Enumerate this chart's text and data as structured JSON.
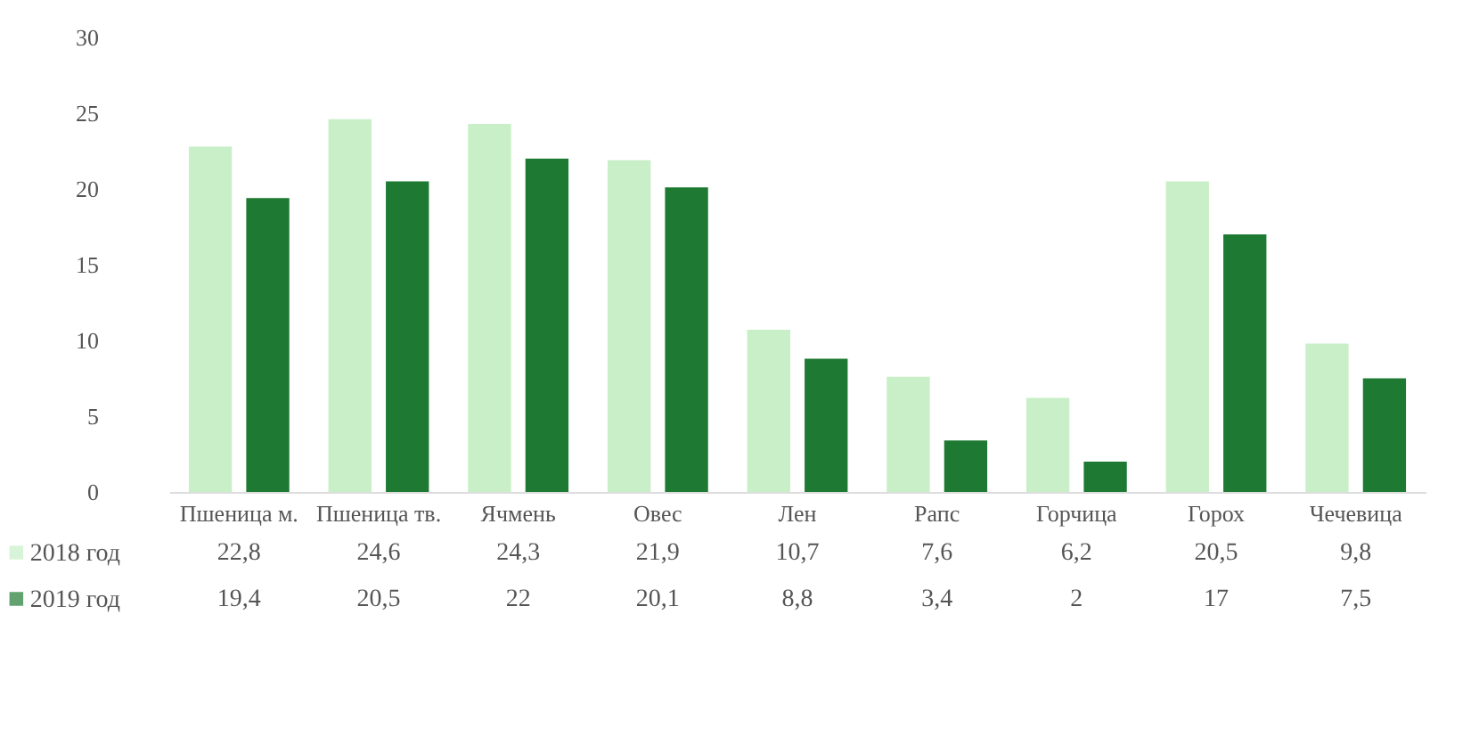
{
  "chart_data": {
    "type": "bar",
    "categories": [
      "Пшеница м.",
      "Пшеница тв.",
      "Ячмень",
      "Овес",
      "Лен",
      "Рапс",
      "Горчица",
      "Горох",
      "Чечевица"
    ],
    "series": [
      {
        "name": "2018 год",
        "color": "#c8efc8",
        "values": [
          22.8,
          24.6,
          24.3,
          21.9,
          10.7,
          7.6,
          6.2,
          20.5,
          9.8
        ],
        "value_labels": [
          "22,8",
          "24,6",
          "24,3",
          "21,9",
          "10,7",
          "7,6",
          "6,2",
          "20,5",
          "9,8"
        ]
      },
      {
        "name": "2019 год",
        "color": "#1e7a32",
        "values": [
          19.4,
          20.5,
          22,
          20.1,
          8.8,
          3.4,
          2,
          17,
          7.5
        ],
        "value_labels": [
          "19,4",
          "20,5",
          "22",
          "20,1",
          "8,8",
          "3,4",
          "2",
          "17",
          "7,5"
        ]
      }
    ],
    "ylim": [
      0,
      30
    ],
    "yticks": [
      0,
      5,
      10,
      15,
      20,
      25,
      30
    ],
    "grid": false,
    "legend": "bottom"
  }
}
